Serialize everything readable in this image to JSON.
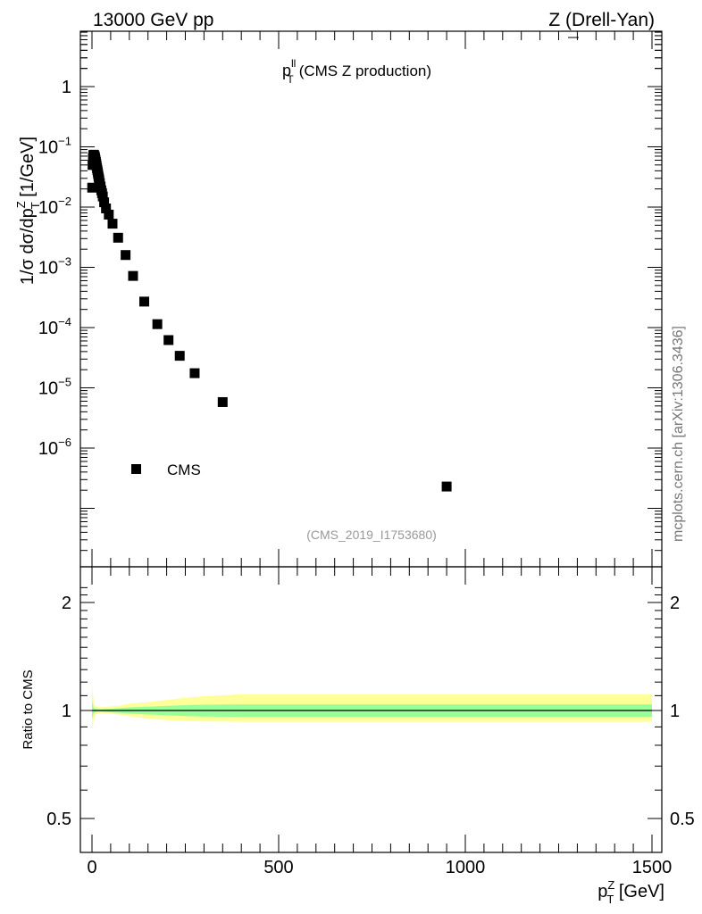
{
  "header": {
    "left_text": "13000 GeV pp",
    "right_text": "Z (Drell-Yan)"
  },
  "watermark": "mcplots.cern.ch [arXiv:1306.3436]",
  "analysis_id": "(CMS_2019_I1753680)",
  "chart_data": [
    {
      "type": "scatter",
      "title": {
        "main": "p",
        "sup": "ll",
        "sub": "T",
        "suffix": "(CMS Z production)"
      },
      "ylabel": "1/σ dσ/dp_T^Z [1/GeV]",
      "ylabel_parts": {
        "prefix": "1/σ dσ/dp",
        "sup": "Z",
        "sub": "T",
        "suffix": " [1/GeV]"
      },
      "y_scale": "log",
      "ylim": [
        1e-08,
        8
      ],
      "xlim": [
        -30,
        1500
      ],
      "y_tick_labels": [
        {
          "value": 1,
          "base": "1",
          "exp": ""
        },
        {
          "value": 0.1,
          "base": "10",
          "exp": "−1"
        },
        {
          "value": 0.01,
          "base": "10",
          "exp": "−2"
        },
        {
          "value": 0.001,
          "base": "10",
          "exp": "−3"
        },
        {
          "value": 0.0001,
          "base": "10",
          "exp": "−4"
        },
        {
          "value": 1e-05,
          "base": "10",
          "exp": "−5"
        },
        {
          "value": 1e-06,
          "base": "10",
          "exp": "−6"
        }
      ],
      "legend": {
        "label": "CMS",
        "position": "bottom-left"
      },
      "series": [
        {
          "name": "CMS",
          "marker": "square",
          "color": "#000000",
          "x": [
            0.5,
            1.5,
            2.5,
            3.5,
            4.5,
            5.5,
            6.5,
            7.5,
            8.5,
            9.5,
            10.5,
            11.5,
            12.5,
            13.5,
            14.5,
            15.5,
            16.5,
            17.5,
            18.5,
            19.5,
            21,
            23,
            25,
            27,
            29,
            32.5,
            37.5,
            45,
            55,
            70,
            90,
            110,
            140,
            175,
            205,
            235,
            275,
            350,
            950
          ],
          "y": [
            0.021,
            0.05,
            0.065,
            0.072,
            0.074,
            0.073,
            0.071,
            0.068,
            0.065,
            0.06,
            0.056,
            0.052,
            0.048,
            0.044,
            0.041,
            0.038,
            0.035,
            0.032,
            0.03,
            0.028,
            0.025,
            0.022,
            0.019,
            0.017,
            0.015,
            0.012,
            0.0095,
            0.0075,
            0.0053,
            0.0031,
            0.0016,
            0.00072,
            0.00027,
            0.000114,
            6.2e-05,
            3.4e-05,
            1.75e-05,
            5.8e-06,
            2.3e-07
          ]
        }
      ]
    },
    {
      "type": "area",
      "ylabel": "Ratio to CMS",
      "xlabel": "p_T^Z [GeV]",
      "xlabel_parts": {
        "main": "p",
        "sup": "Z",
        "sub": "T",
        "suffix": " [GeV]"
      },
      "xlim": [
        -30,
        1500
      ],
      "ylim": [
        0.35,
        2.3
      ],
      "y_tick_labels": [
        2,
        1,
        0.5
      ],
      "x_tick_labels": [
        0,
        500,
        1000,
        1500
      ],
      "reference_line": 1,
      "bands": [
        {
          "kind": "total uncertainty",
          "color": "#ffff99",
          "x": [
            0,
            5,
            10,
            20,
            40,
            70,
            100,
            150,
            200,
            250,
            300,
            400,
            1500
          ],
          "low": [
            0.88,
            0.95,
            0.975,
            0.982,
            0.98,
            0.975,
            0.965,
            0.95,
            0.94,
            0.935,
            0.932,
            0.93,
            0.93
          ],
          "high": [
            1.18,
            1.05,
            1.025,
            1.02,
            1.025,
            1.03,
            1.045,
            1.055,
            1.07,
            1.085,
            1.095,
            1.11,
            1.11
          ]
        },
        {
          "kind": "statistical uncertainty",
          "color": "#99ff99",
          "x": [
            0,
            5,
            10,
            20,
            40,
            70,
            100,
            150,
            200,
            250,
            300,
            400,
            1500
          ],
          "low": [
            0.95,
            0.985,
            0.99,
            0.992,
            0.99,
            0.985,
            0.98,
            0.975,
            0.97,
            0.965,
            0.962,
            0.96,
            0.96
          ],
          "high": [
            1.06,
            1.015,
            1.01,
            1.008,
            1.01,
            1.015,
            1.02,
            1.025,
            1.03,
            1.035,
            1.038,
            1.04,
            1.04
          ]
        }
      ]
    }
  ]
}
